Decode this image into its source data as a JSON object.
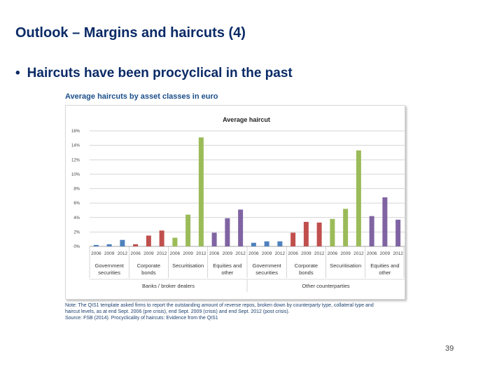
{
  "slide": {
    "title": "Outlook – Margins and haircuts (4)",
    "bullet": "Haircuts have been procyclical in the past",
    "page_number": "39"
  },
  "figure": {
    "title": "Average haircuts by asset classes in euro",
    "notes": [
      "Note: The QIS1 template asked firms to report the outstanding amount of reverse repos, broken down by counterparty type, collateral type and",
      "haircut levels, as at end Sept. 2006 (pre crisis), end Sept. 2009 (crisis) and end Sept. 2012 (post crisis).",
      "Source: FSB (2014). Procyclicality of haircuts: Evidence from the QIS1"
    ]
  },
  "chart_data": {
    "type": "bar",
    "title": "Average haircut",
    "xlabel": "",
    "ylabel": "",
    "ylim": [
      0,
      16
    ],
    "yticks": [
      "0%",
      "2%",
      "4%",
      "6%",
      "8%",
      "10%",
      "12%",
      "14%",
      "16%"
    ],
    "grid": true,
    "legend": "none",
    "years": [
      "2006",
      "2009",
      "2012"
    ],
    "groups": [
      {
        "name": "Government securities",
        "label_lines": [
          "Government",
          "securities"
        ],
        "counterparty": "Banks / broker dealers",
        "color": "#4f81bd",
        "values": [
          0.2,
          0.3,
          0.9
        ]
      },
      {
        "name": "Corporate bonds",
        "label_lines": [
          "Corporate",
          "bonds"
        ],
        "counterparty": "Banks / broker dealers",
        "color": "#c0504d",
        "values": [
          0.3,
          1.5,
          2.2
        ]
      },
      {
        "name": "Securitisation",
        "label_lines": [
          "Securitisation"
        ],
        "counterparty": "Banks / broker dealers",
        "color": "#9bbb59",
        "values": [
          1.2,
          4.4,
          15.1
        ]
      },
      {
        "name": "Equities and other",
        "label_lines": [
          "Equities and",
          "other"
        ],
        "counterparty": "Banks / broker dealers",
        "color": "#8064a2",
        "values": [
          1.9,
          3.9,
          5.1
        ]
      },
      {
        "name": "Government securities",
        "label_lines": [
          "Government",
          "securities"
        ],
        "counterparty": "Other counterparties",
        "color": "#4f81bd",
        "values": [
          0.5,
          0.7,
          0.7
        ]
      },
      {
        "name": "Corporate bonds",
        "label_lines": [
          "Corporate",
          "bonds"
        ],
        "counterparty": "Other counterparties",
        "color": "#c0504d",
        "values": [
          1.9,
          3.4,
          3.3
        ]
      },
      {
        "name": "Securitisation",
        "label_lines": [
          "Securitisation"
        ],
        "counterparty": "Other counterparties",
        "color": "#9bbb59",
        "values": [
          3.8,
          5.2,
          13.3
        ]
      },
      {
        "name": "Equities and other",
        "label_lines": [
          "Equities and",
          "other"
        ],
        "counterparty": "Other counterparties",
        "color": "#8064a2",
        "values": [
          4.2,
          6.8,
          3.7
        ]
      }
    ],
    "counterparties": [
      "Banks / broker dealers",
      "Other counterparties"
    ]
  }
}
